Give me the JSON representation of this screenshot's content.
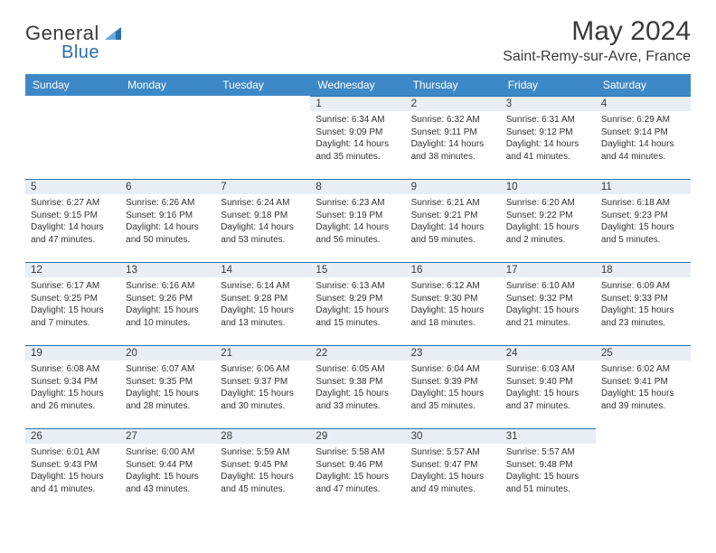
{
  "brand": {
    "name_part1": "General",
    "name_part2": "Blue"
  },
  "title": "May 2024",
  "location": "Saint-Remy-sur-Avre, France",
  "colors": {
    "header_bg": "#3d88c7",
    "header_text": "#ffffff",
    "daynum_bg": "#e8eef4",
    "rule": "#2f6fa8",
    "text": "#333333",
    "brand_blue": "#2f6fa8"
  },
  "fonts": {
    "title_size": 30,
    "location_size": 16,
    "weekday_size": 12,
    "daynum_size": 11.5,
    "detail_size": 10
  },
  "weekdays": [
    "Sunday",
    "Monday",
    "Tuesday",
    "Wednesday",
    "Thursday",
    "Friday",
    "Saturday"
  ],
  "weeks": [
    [
      null,
      null,
      null,
      {
        "n": "1",
        "sunrise": "Sunrise: 6:34 AM",
        "sunset": "Sunset: 9:09 PM",
        "day1": "Daylight: 14 hours",
        "day2": "and 35 minutes."
      },
      {
        "n": "2",
        "sunrise": "Sunrise: 6:32 AM",
        "sunset": "Sunset: 9:11 PM",
        "day1": "Daylight: 14 hours",
        "day2": "and 38 minutes."
      },
      {
        "n": "3",
        "sunrise": "Sunrise: 6:31 AM",
        "sunset": "Sunset: 9:12 PM",
        "day1": "Daylight: 14 hours",
        "day2": "and 41 minutes."
      },
      {
        "n": "4",
        "sunrise": "Sunrise: 6:29 AM",
        "sunset": "Sunset: 9:14 PM",
        "day1": "Daylight: 14 hours",
        "day2": "and 44 minutes."
      }
    ],
    [
      {
        "n": "5",
        "sunrise": "Sunrise: 6:27 AM",
        "sunset": "Sunset: 9:15 PM",
        "day1": "Daylight: 14 hours",
        "day2": "and 47 minutes."
      },
      {
        "n": "6",
        "sunrise": "Sunrise: 6:26 AM",
        "sunset": "Sunset: 9:16 PM",
        "day1": "Daylight: 14 hours",
        "day2": "and 50 minutes."
      },
      {
        "n": "7",
        "sunrise": "Sunrise: 6:24 AM",
        "sunset": "Sunset: 9:18 PM",
        "day1": "Daylight: 14 hours",
        "day2": "and 53 minutes."
      },
      {
        "n": "8",
        "sunrise": "Sunrise: 6:23 AM",
        "sunset": "Sunset: 9:19 PM",
        "day1": "Daylight: 14 hours",
        "day2": "and 56 minutes."
      },
      {
        "n": "9",
        "sunrise": "Sunrise: 6:21 AM",
        "sunset": "Sunset: 9:21 PM",
        "day1": "Daylight: 14 hours",
        "day2": "and 59 minutes."
      },
      {
        "n": "10",
        "sunrise": "Sunrise: 6:20 AM",
        "sunset": "Sunset: 9:22 PM",
        "day1": "Daylight: 15 hours",
        "day2": "and 2 minutes."
      },
      {
        "n": "11",
        "sunrise": "Sunrise: 6:18 AM",
        "sunset": "Sunset: 9:23 PM",
        "day1": "Daylight: 15 hours",
        "day2": "and 5 minutes."
      }
    ],
    [
      {
        "n": "12",
        "sunrise": "Sunrise: 6:17 AM",
        "sunset": "Sunset: 9:25 PM",
        "day1": "Daylight: 15 hours",
        "day2": "and 7 minutes."
      },
      {
        "n": "13",
        "sunrise": "Sunrise: 6:16 AM",
        "sunset": "Sunset: 9:26 PM",
        "day1": "Daylight: 15 hours",
        "day2": "and 10 minutes."
      },
      {
        "n": "14",
        "sunrise": "Sunrise: 6:14 AM",
        "sunset": "Sunset: 9:28 PM",
        "day1": "Daylight: 15 hours",
        "day2": "and 13 minutes."
      },
      {
        "n": "15",
        "sunrise": "Sunrise: 6:13 AM",
        "sunset": "Sunset: 9:29 PM",
        "day1": "Daylight: 15 hours",
        "day2": "and 15 minutes."
      },
      {
        "n": "16",
        "sunrise": "Sunrise: 6:12 AM",
        "sunset": "Sunset: 9:30 PM",
        "day1": "Daylight: 15 hours",
        "day2": "and 18 minutes."
      },
      {
        "n": "17",
        "sunrise": "Sunrise: 6:10 AM",
        "sunset": "Sunset: 9:32 PM",
        "day1": "Daylight: 15 hours",
        "day2": "and 21 minutes."
      },
      {
        "n": "18",
        "sunrise": "Sunrise: 6:09 AM",
        "sunset": "Sunset: 9:33 PM",
        "day1": "Daylight: 15 hours",
        "day2": "and 23 minutes."
      }
    ],
    [
      {
        "n": "19",
        "sunrise": "Sunrise: 6:08 AM",
        "sunset": "Sunset: 9:34 PM",
        "day1": "Daylight: 15 hours",
        "day2": "and 26 minutes."
      },
      {
        "n": "20",
        "sunrise": "Sunrise: 6:07 AM",
        "sunset": "Sunset: 9:35 PM",
        "day1": "Daylight: 15 hours",
        "day2": "and 28 minutes."
      },
      {
        "n": "21",
        "sunrise": "Sunrise: 6:06 AM",
        "sunset": "Sunset: 9:37 PM",
        "day1": "Daylight: 15 hours",
        "day2": "and 30 minutes."
      },
      {
        "n": "22",
        "sunrise": "Sunrise: 6:05 AM",
        "sunset": "Sunset: 9:38 PM",
        "day1": "Daylight: 15 hours",
        "day2": "and 33 minutes."
      },
      {
        "n": "23",
        "sunrise": "Sunrise: 6:04 AM",
        "sunset": "Sunset: 9:39 PM",
        "day1": "Daylight: 15 hours",
        "day2": "and 35 minutes."
      },
      {
        "n": "24",
        "sunrise": "Sunrise: 6:03 AM",
        "sunset": "Sunset: 9:40 PM",
        "day1": "Daylight: 15 hours",
        "day2": "and 37 minutes."
      },
      {
        "n": "25",
        "sunrise": "Sunrise: 6:02 AM",
        "sunset": "Sunset: 9:41 PM",
        "day1": "Daylight: 15 hours",
        "day2": "and 39 minutes."
      }
    ],
    [
      {
        "n": "26",
        "sunrise": "Sunrise: 6:01 AM",
        "sunset": "Sunset: 9:43 PM",
        "day1": "Daylight: 15 hours",
        "day2": "and 41 minutes."
      },
      {
        "n": "27",
        "sunrise": "Sunrise: 6:00 AM",
        "sunset": "Sunset: 9:44 PM",
        "day1": "Daylight: 15 hours",
        "day2": "and 43 minutes."
      },
      {
        "n": "28",
        "sunrise": "Sunrise: 5:59 AM",
        "sunset": "Sunset: 9:45 PM",
        "day1": "Daylight: 15 hours",
        "day2": "and 45 minutes."
      },
      {
        "n": "29",
        "sunrise": "Sunrise: 5:58 AM",
        "sunset": "Sunset: 9:46 PM",
        "day1": "Daylight: 15 hours",
        "day2": "and 47 minutes."
      },
      {
        "n": "30",
        "sunrise": "Sunrise: 5:57 AM",
        "sunset": "Sunset: 9:47 PM",
        "day1": "Daylight: 15 hours",
        "day2": "and 49 minutes."
      },
      {
        "n": "31",
        "sunrise": "Sunrise: 5:57 AM",
        "sunset": "Sunset: 9:48 PM",
        "day1": "Daylight: 15 hours",
        "day2": "and 51 minutes."
      },
      null
    ]
  ]
}
